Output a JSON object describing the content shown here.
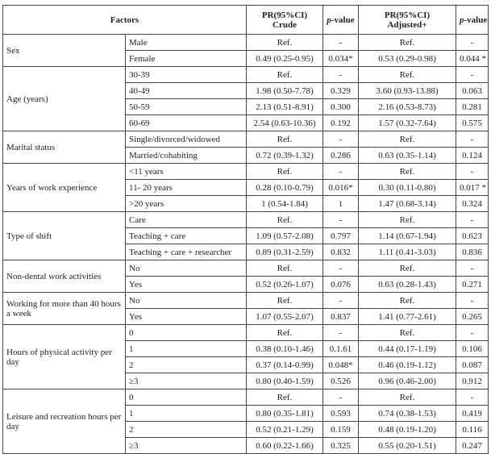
{
  "header": {
    "factors": "Factors",
    "crude_line1": "PR(95%CI)",
    "crude_line2": "Crude",
    "p_prefix": "p",
    "p_suffix": "-value",
    "adj_line1": "PR(95%CI)",
    "adj_line2": "Adjusted+"
  },
  "groups": [
    {
      "factor": "Sex",
      "rows": [
        {
          "level": "Male",
          "crude": "Ref.",
          "p_crude": "-",
          "adjusted": "Ref.",
          "p_adjusted": "-"
        },
        {
          "level": "Female",
          "crude": "0.49 (0.25-0.95)",
          "p_crude": "0.034*",
          "adjusted": "0.53 (0.29-0.98)",
          "p_adjusted": "0.044 *"
        }
      ]
    },
    {
      "factor": "Age (years)",
      "rows": [
        {
          "level": "30-39",
          "crude": "Ref.",
          "p_crude": "-",
          "adjusted": "Ref.",
          "p_adjusted": "-"
        },
        {
          "level": "40-49",
          "crude": "1.98 (0.50-7.78)",
          "p_crude": "0.329",
          "adjusted": "3.60 (0.93-13.88)",
          "p_adjusted": "0.063"
        },
        {
          "level": "50-59",
          "crude": "2.13 (0.51-8.91)",
          "p_crude": "0.300",
          "adjusted": "2.16 (0.53-8.73)",
          "p_adjusted": "0.281"
        },
        {
          "level": "60-69",
          "crude": "2.54 (0.63-10.36)",
          "p_crude": "0.192",
          "adjusted": "1.57 (0.32-7.64)",
          "p_adjusted": "0.575"
        }
      ]
    },
    {
      "factor": "Marital status",
      "rows": [
        {
          "level": "Single/divorced/widowed",
          "crude": "Ref.",
          "p_crude": "-",
          "adjusted": "Ref.",
          "p_adjusted": "-"
        },
        {
          "level": "Married/cohabiting",
          "crude": "0.72 (0.39-1.32)",
          "p_crude": "0.286",
          "adjusted": "0.63 (0.35-1.14)",
          "p_adjusted": "0.124"
        }
      ]
    },
    {
      "factor": "Years of work experience",
      "rows": [
        {
          "level": "<11 years",
          "crude": "Ref.",
          "p_crude": "-",
          "adjusted": "Ref.",
          "p_adjusted": "-"
        },
        {
          "level": "11- 20 years",
          "crude": "0.28 (0.10-0.79)",
          "p_crude": "0.016*",
          "adjusted": "0.30 (0.11-0.80)",
          "p_adjusted": "0.017 *"
        },
        {
          "level": ">20 years",
          "crude": "1 (0.54-1.84)",
          "p_crude": "1",
          "adjusted": "1.47 (0.68-3.14)",
          "p_adjusted": "0.324"
        }
      ]
    },
    {
      "factor": "Type of shift",
      "rows": [
        {
          "level": "Care",
          "crude": "Ref.",
          "p_crude": "-",
          "adjusted": "Ref.",
          "p_adjusted": "-"
        },
        {
          "level": "Teaching + care",
          "crude": "1.09 (0.57-2.08)",
          "p_crude": "0.797",
          "adjusted": "1.14 (0.67-1.94)",
          "p_adjusted": "0.623"
        },
        {
          "level": "Teaching + care + researcher",
          "crude": "0.89 (0.31-2.59)",
          "p_crude": "0.832",
          "adjusted": "1.11 (0.41-3.03)",
          "p_adjusted": "0.836"
        }
      ]
    },
    {
      "factor": "Non-dental work activities",
      "rows": [
        {
          "level": "No",
          "crude": "Ref.",
          "p_crude": "-",
          "adjusted": "Ref.",
          "p_adjusted": "-"
        },
        {
          "level": "Yes",
          "crude": "0.52 (0.26-1.07)",
          "p_crude": "0.076",
          "adjusted": "0.63 (0.28-1.43)",
          "p_adjusted": "0.271"
        }
      ]
    },
    {
      "factor": "Working for more than 40 hours a week",
      "rows": [
        {
          "level": "No",
          "crude": "Ref.",
          "p_crude": "-",
          "adjusted": "Ref.",
          "p_adjusted": "-"
        },
        {
          "level": "Yes",
          "crude": "1.07 (0.55-2.07)",
          "p_crude": "0.837",
          "adjusted": "1.41 (0.77-2.61)",
          "p_adjusted": "0.265"
        }
      ]
    },
    {
      "factor": "Hours of physical activity per day",
      "rows": [
        {
          "level": "0",
          "crude": "Ref.",
          "p_crude": "-",
          "adjusted": "Ref.",
          "p_adjusted": "-"
        },
        {
          "level": "1",
          "crude": "0.38 (0.10-1.46)",
          "p_crude": "0.1.61",
          "adjusted": "0.44 (0.17-1.19)",
          "p_adjusted": "0.106"
        },
        {
          "level": "2",
          "crude": "0.37 (0.14-0.99)",
          "p_crude": "0.048*",
          "adjusted": "0.46 (0.19-1.12)",
          "p_adjusted": "0.087"
        },
        {
          "level": "≥3",
          "crude": "0.80 (0.40-1.59)",
          "p_crude": "0.526",
          "adjusted": "0.96 (0.46-2.00)",
          "p_adjusted": "0.912"
        }
      ]
    },
    {
      "factor": "Leisure and recreation hours per day",
      "rows": [
        {
          "level": "0",
          "crude": "Ref.",
          "p_crude": "-",
          "adjusted": "Ref.",
          "p_adjusted": "-"
        },
        {
          "level": "1",
          "crude": "0.80 (0.35-1.81)",
          "p_crude": "0.593",
          "adjusted": "0.74 (0.38-1.53)",
          "p_adjusted": "0.419"
        },
        {
          "level": "2",
          "crude": "0.52 (0.21-1.29)",
          "p_crude": "0.159",
          "adjusted": "0.48 (0.19-1.20)",
          "p_adjusted": "0.116"
        },
        {
          "level": "≥3",
          "crude": "0.60 (0.22-1.66)",
          "p_crude": "0.325",
          "adjusted": "0.55 (0.20-1.51)",
          "p_adjusted": "0.247"
        }
      ]
    }
  ]
}
